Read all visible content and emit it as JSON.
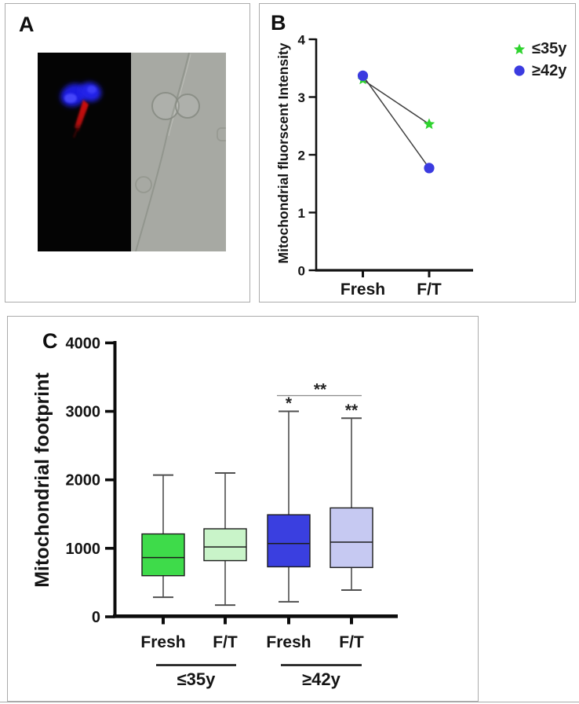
{
  "figure": {
    "panelA": {
      "label": "A"
    },
    "panelB": {
      "label": "B"
    },
    "panelC": {
      "label": "C"
    }
  },
  "chart_data": [
    {
      "panel": "B",
      "type": "line",
      "title": "",
      "ylabel": "Mitochondrial fluorscent Intensity",
      "categories": [
        "Fresh",
        "F/T"
      ],
      "yticks": [
        0,
        1,
        2,
        3,
        4
      ],
      "ylim": [
        0,
        4
      ],
      "grid": false,
      "legend_position": "top-right",
      "series": [
        {
          "name": "≤35y",
          "marker": "star",
          "color": "#2ed32e",
          "values": [
            3.3,
            2.53
          ]
        },
        {
          "name": "≥42y",
          "marker": "circle",
          "color": "#3b3be0",
          "values": [
            3.37,
            1.77
          ]
        }
      ]
    },
    {
      "panel": "C",
      "type": "box",
      "title": "",
      "ylabel": "Mitochondrial footprint",
      "yticks": [
        0,
        1000,
        2000,
        3000,
        4000
      ],
      "ylim": [
        0,
        4000
      ],
      "grid": false,
      "groups": [
        "≤35y",
        "≥42y"
      ],
      "boxes": [
        {
          "group": "≤35y",
          "condition": "Fresh",
          "color": "#3edb4a",
          "whisker_low": 285,
          "q1": 600,
          "median": 865,
          "q3": 1210,
          "whisker_high": 2070,
          "annotation": ""
        },
        {
          "group": "≤35y",
          "condition": "F/T",
          "color": "#c9f4c9",
          "whisker_low": 170,
          "q1": 820,
          "median": 1020,
          "q3": 1285,
          "whisker_high": 2100,
          "annotation": ""
        },
        {
          "group": "≥42y",
          "condition": "Fresh",
          "color": "#3a3fe0",
          "whisker_low": 220,
          "q1": 730,
          "median": 1070,
          "q3": 1490,
          "whisker_high": 3000,
          "annotation": "*"
        },
        {
          "group": "≥42y",
          "condition": "F/T",
          "color": "#c6c9f2",
          "whisker_low": 390,
          "q1": 720,
          "median": 1090,
          "q3": 1590,
          "whisker_high": 2900,
          "annotation": "**"
        }
      ],
      "comparison_bracket": {
        "between": [
          "≥42y Fresh",
          "≥42y F/T"
        ],
        "label": "**",
        "y_value": 3230
      }
    }
  ]
}
